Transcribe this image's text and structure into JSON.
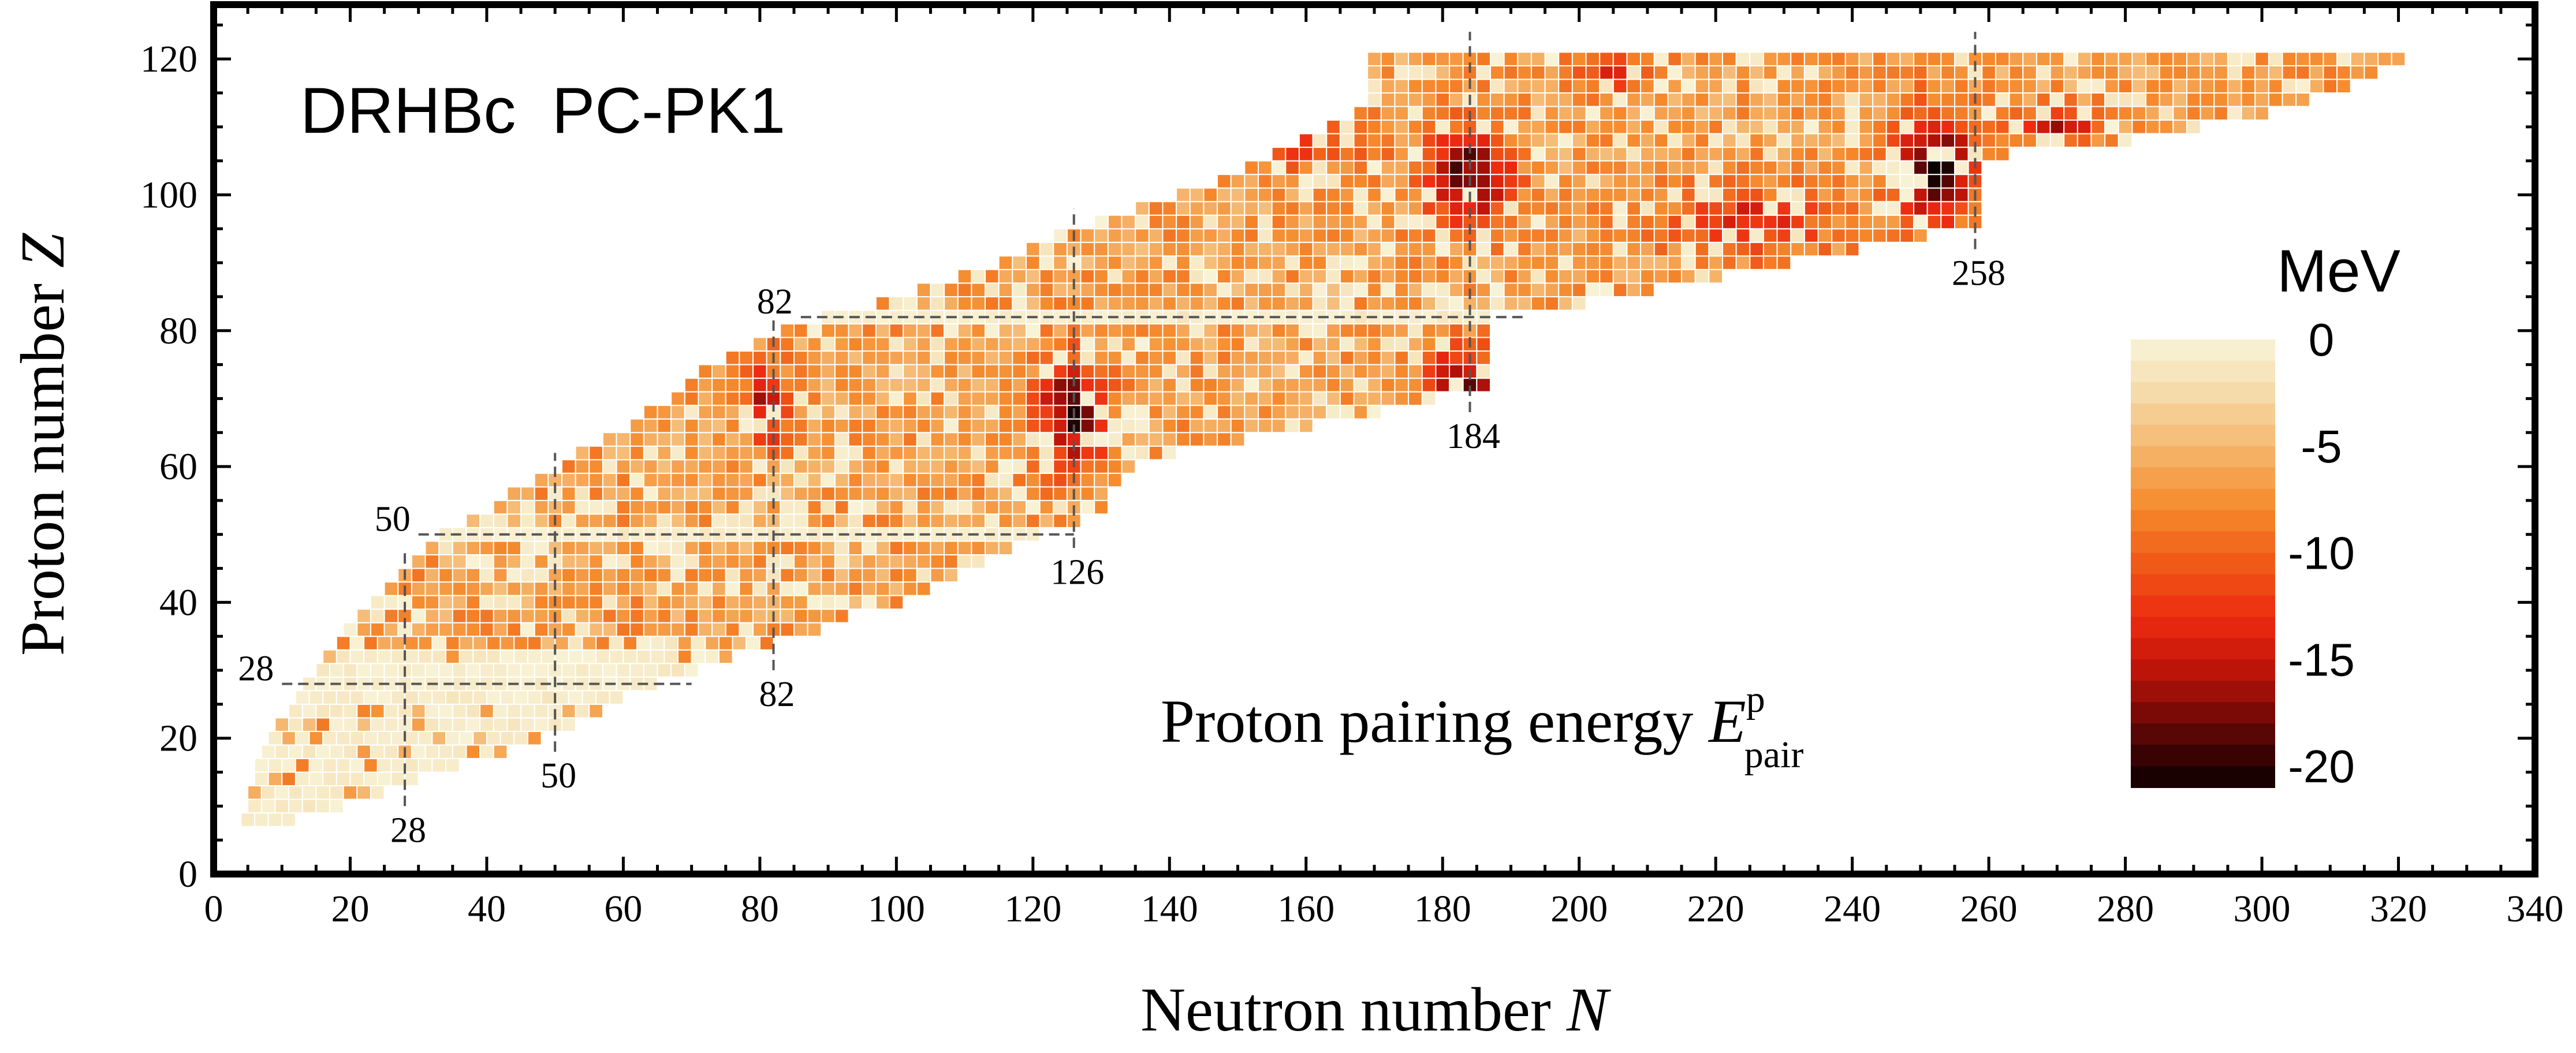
{
  "chart_data": {
    "type": "heatmap",
    "title": "DRHBc  PC-PK1",
    "xlabel": "Neutron number",
    "xlabel_var": "N",
    "ylabel": "Proton number",
    "ylabel_var": "Z",
    "xlim": [
      0,
      340
    ],
    "ylim": [
      0,
      128
    ],
    "xticks": [
      0,
      20,
      40,
      60,
      80,
      100,
      120,
      140,
      160,
      180,
      200,
      220,
      240,
      260,
      280,
      300,
      320,
      340
    ],
    "yticks": [
      0,
      20,
      40,
      60,
      80,
      100,
      120
    ],
    "annotation": {
      "text": "Proton pairing energy",
      "symbol": "E",
      "superscript": "p",
      "subscript": "pair"
    },
    "colorbar": {
      "title": "MeV",
      "min": -21,
      "max": 0,
      "ticks": [
        "0",
        "-5",
        "-10",
        "-15",
        "-20"
      ],
      "tick_values": [
        0,
        -5,
        -10,
        -15,
        -20
      ],
      "colors": [
        "#f8f4d8",
        "#f5d9a8",
        "#f5b46a",
        "#f58a2c",
        "#f05a18",
        "#ee2a10",
        "#b81208",
        "#5c0606",
        "#0a0000"
      ]
    },
    "neutron_magic": [
      {
        "label": "28",
        "N": 28
      },
      {
        "label": "50",
        "N": 50
      },
      {
        "label": "82",
        "N": 82
      },
      {
        "label": "126",
        "N": 126
      },
      {
        "label": "184",
        "N": 184
      },
      {
        "label": "258",
        "N": 258
      }
    ],
    "proton_magic": [
      {
        "label": "28",
        "Z": 28
      },
      {
        "label": "50",
        "Z": 50
      },
      {
        "label": "82",
        "Z": 82
      }
    ],
    "nuclide_rows": [
      [
        8,
        5,
        12
      ],
      [
        10,
        6,
        18
      ],
      [
        12,
        6,
        24
      ],
      [
        14,
        7,
        30
      ],
      [
        16,
        7,
        36
      ],
      [
        18,
        8,
        42
      ],
      [
        20,
        9,
        48
      ],
      [
        22,
        10,
        52
      ],
      [
        24,
        12,
        56
      ],
      [
        26,
        13,
        60
      ],
      [
        28,
        14,
        64
      ],
      [
        30,
        16,
        70
      ],
      [
        32,
        17,
        76
      ],
      [
        34,
        19,
        82
      ],
      [
        36,
        20,
        88
      ],
      [
        38,
        22,
        92
      ],
      [
        40,
        24,
        100
      ],
      [
        42,
        26,
        104
      ],
      [
        44,
        28,
        108
      ],
      [
        46,
        30,
        112
      ],
      [
        48,
        32,
        116
      ],
      [
        50,
        34,
        120
      ],
      [
        52,
        38,
        126
      ],
      [
        54,
        42,
        130
      ],
      [
        56,
        44,
        130
      ],
      [
        58,
        48,
        132
      ],
      [
        60,
        52,
        134
      ],
      [
        62,
        54,
        140
      ],
      [
        64,
        58,
        150
      ],
      [
        66,
        62,
        160
      ],
      [
        68,
        64,
        170
      ],
      [
        70,
        68,
        178
      ],
      [
        72,
        70,
        186
      ],
      [
        74,
        72,
        186
      ],
      [
        76,
        76,
        186
      ],
      [
        78,
        80,
        186
      ],
      [
        80,
        84,
        186
      ],
      [
        82,
        90,
        186
      ],
      [
        84,
        98,
        200
      ],
      [
        86,
        104,
        210
      ],
      [
        88,
        110,
        220
      ],
      [
        90,
        116,
        230
      ],
      [
        92,
        120,
        240
      ],
      [
        94,
        124,
        250
      ],
      [
        96,
        130,
        258
      ],
      [
        98,
        136,
        258
      ],
      [
        100,
        142,
        258
      ],
      [
        102,
        148,
        258
      ],
      [
        104,
        152,
        258
      ],
      [
        106,
        156,
        262
      ],
      [
        108,
        160,
        280
      ],
      [
        110,
        164,
        290
      ],
      [
        112,
        168,
        300
      ],
      [
        114,
        170,
        306
      ],
      [
        116,
        170,
        312
      ],
      [
        118,
        170,
        316
      ],
      [
        120,
        170,
        320
      ]
    ]
  }
}
